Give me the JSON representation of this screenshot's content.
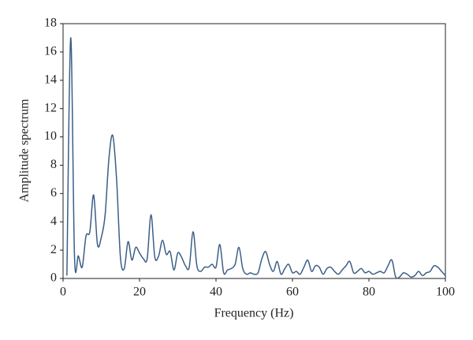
{
  "chart_data": {
    "type": "line",
    "xlabel": "Frequency (Hz)",
    "ylabel": "Amplitude spectrum",
    "x": [
      1,
      2,
      3,
      4,
      5,
      6,
      7,
      8,
      9,
      10,
      11,
      12,
      13,
      14,
      15,
      16,
      17,
      18,
      19,
      20,
      21,
      22,
      23,
      24,
      25,
      26,
      27,
      28,
      29,
      30,
      31,
      32,
      33,
      34,
      35,
      36,
      37,
      38,
      39,
      40,
      41,
      42,
      43,
      44,
      45,
      46,
      47,
      48,
      49,
      50,
      51,
      52,
      53,
      54,
      55,
      56,
      57,
      58,
      59,
      60,
      61,
      62,
      63,
      64,
      65,
      66,
      67,
      68,
      69,
      70,
      71,
      72,
      73,
      74,
      75,
      76,
      77,
      78,
      79,
      80,
      81,
      82,
      83,
      84,
      85,
      86,
      87,
      88,
      89,
      90,
      91,
      92,
      93,
      94,
      95,
      96,
      97,
      98,
      99,
      100
    ],
    "series": [
      {
        "color": "#3b5e86",
        "values": [
          0.2,
          17,
          1.5,
          1.6,
          0.8,
          3.0,
          3.3,
          5.9,
          2.4,
          2.9,
          4.5,
          8.5,
          10.1,
          7,
          1.5,
          0.7,
          2.6,
          1.3,
          2.2,
          1.8,
          1.4,
          1.4,
          4.5,
          1.5,
          1.6,
          2.7,
          1.7,
          1.9,
          0.6,
          1.8,
          1.5,
          0.9,
          0.8,
          3.3,
          0.9,
          0.5,
          0.8,
          0.8,
          1.0,
          0.8,
          2.4,
          0.4,
          0.6,
          0.7,
          1.0,
          2.2,
          0.7,
          0.3,
          0.4,
          0.3,
          0.4,
          1.4,
          1.9,
          1.0,
          0.5,
          1.2,
          0.3,
          0.7,
          1.0,
          0.4,
          0.5,
          0.3,
          0.8,
          1.3,
          0.5,
          0.9,
          0.8,
          0.3,
          0.7,
          0.8,
          0.5,
          0.3,
          0.6,
          0.9,
          1.2,
          0.4,
          0.5,
          0.7,
          0.4,
          0.5,
          0.3,
          0.4,
          0.5,
          0.4,
          0.9,
          1.3,
          0.1,
          0.1,
          0.4,
          0.3,
          0.1,
          0.2,
          0.5,
          0.2,
          0.4,
          0.5,
          0.9,
          0.8,
          0.5,
          0.2
        ]
      }
    ],
    "xlim": [
      0,
      100
    ],
    "xticks": [
      0,
      20,
      40,
      60,
      80,
      100
    ],
    "ylim": [
      0,
      18
    ],
    "yticks": [
      0,
      2,
      4,
      6,
      8,
      10,
      12,
      14,
      16,
      18
    ]
  }
}
